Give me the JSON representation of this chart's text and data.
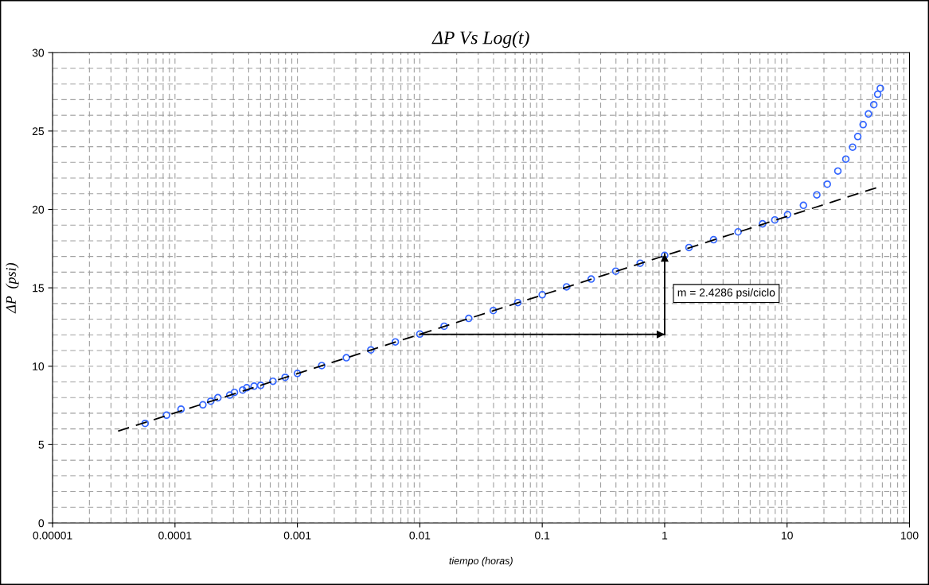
{
  "chart_data": {
    "type": "scatter",
    "title": "ΔP Vs Log(t)",
    "xlabel": "tiempo (horas)",
    "ylabel": "ΔP  (psi)",
    "log": "x",
    "xlim": [
      1e-05,
      100
    ],
    "xticks": [
      {
        "value": 1e-05,
        "label": "0.00001"
      },
      {
        "value": 0.0001,
        "label": "0.0001"
      },
      {
        "value": 0.001,
        "label": "0.001"
      },
      {
        "value": 0.01,
        "label": "0.01"
      },
      {
        "value": 0.1,
        "label": "0.1"
      },
      1,
      10,
      100
    ],
    "ylim": [
      0,
      30
    ],
    "yticks": [
      0,
      5,
      10,
      15,
      20,
      25,
      30
    ],
    "grid": true,
    "marker": "circle",
    "annotations": [
      "m = 2.4286 psi/ciclo"
    ],
    "series": [
      {
        "color": "#3366ff",
        "x": [
          5.7e-05,
          8.53e-05,
          0.000112,
          0.000169,
          0.000196,
          0.000224,
          0.00028,
          0.000306,
          0.000357,
          0.000386,
          0.000443,
          0.000501,
          0.000631,
          0.000794,
          0.001,
          0.00158,
          0.00251,
          0.00398,
          0.00631,
          0.01,
          0.0158,
          0.0251,
          0.0398,
          0.0631,
          0.1,
          0.158,
          0.251,
          0.398,
          0.631,
          1,
          1.58,
          2.51,
          3.98,
          6.31,
          7.94,
          10.1,
          13.6,
          17.5,
          21.3,
          26.0,
          30.2,
          34.3,
          37.8,
          41.8,
          46.2,
          51.1,
          55.0,
          57.8
        ],
        "values": [
          6.35,
          6.88,
          7.26,
          7.54,
          7.77,
          7.99,
          8.16,
          8.33,
          8.48,
          8.63,
          8.73,
          8.78,
          9.04,
          9.29,
          9.54,
          10.04,
          10.54,
          11.04,
          11.55,
          12.05,
          12.55,
          13.05,
          13.55,
          14.06,
          14.56,
          15.06,
          15.56,
          16.06,
          16.57,
          17.07,
          17.57,
          18.07,
          18.57,
          19.08,
          19.33,
          19.67,
          20.26,
          20.93,
          21.61,
          22.45,
          23.21,
          23.97,
          24.65,
          25.41,
          26.09,
          26.68,
          27.35,
          27.72
        ]
      },
      {
        "type": "line",
        "color": "#000000",
        "line_style": "dashed",
        "marker": "none",
        "x": [
          3.43e-05,
          54.5
        ],
        "values": [
          5.86,
          21.4
        ]
      },
      {
        "type": "line",
        "color": "#000000",
        "line_style": "solid",
        "marker": "none",
        "x": [
          0.01,
          1
        ],
        "values": [
          12.03,
          12.03
        ]
      },
      {
        "type": "line",
        "color": "#000000",
        "line_style": "solid",
        "marker": "none",
        "x": [
          1,
          1
        ],
        "values": [
          12.03,
          17.17
        ]
      }
    ]
  }
}
